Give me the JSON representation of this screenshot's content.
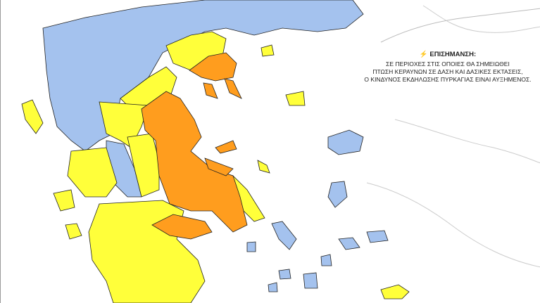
{
  "note": {
    "icon": "lightning-icon",
    "title": "ΕΠΙΣΗΜΑΝΣΗ:",
    "lines": [
      "ΣΕ ΠΕΡΙΟΧΕΣ ΣΤΙΣ ΟΠΟΙΕΣ ΘΑ ΣΗΜΕΙΩΘΕΙ",
      "ΠΤΩΣΗ ΚΕΡΑΥΝΩΝ ΣΕ ΔΑΣΗ ΚΑΙ ΔΑΣΙΚΕΣ ΕΚΤΑΣΕΙΣ,",
      "Ο ΚΙΝΔΥΝΟΣ ΕΚΔΗΛΩΣΗΣ ΠΥΡΚΑΓΙΑΣ ΕΙΝΑΙ ΑΥΞΗΜΕΝΟΣ."
    ]
  },
  "colors": {
    "low_risk": "#a4c2ee",
    "medium_risk": "#ffff3a",
    "high_risk": "#ff9d1e",
    "border": "#222222",
    "neighbor_coast": "#bbbbbb"
  }
}
